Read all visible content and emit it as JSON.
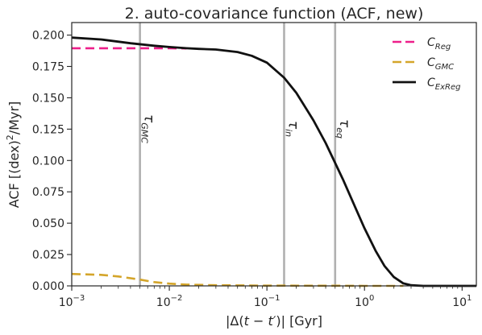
{
  "chart_data": {
    "type": "line",
    "title": "2. auto-covariance function (ACF, new)",
    "xlabel_parts": [
      "|Δ(",
      "t",
      " − ",
      "t′",
      ")| [Gyr]"
    ],
    "ylabel_parts": [
      "ACF [(dex)",
      "2",
      "/Myr]"
    ],
    "xscale": "log",
    "xlim": [
      0.001,
      14
    ],
    "ylim": [
      0,
      0.21
    ],
    "x_ticks": [
      {
        "value": 0.001,
        "base": "10",
        "exp": "−3"
      },
      {
        "value": 0.01,
        "base": "10",
        "exp": "−2"
      },
      {
        "value": 0.1,
        "base": "10",
        "exp": "−1"
      },
      {
        "value": 1,
        "base": "10",
        "exp": "0"
      },
      {
        "value": 10,
        "base": "10",
        "exp": "1"
      }
    ],
    "y_ticks": [
      "0.000",
      "0.025",
      "0.050",
      "0.075",
      "0.100",
      "0.125",
      "0.150",
      "0.175",
      "0.200"
    ],
    "grid": false,
    "legend_position": "top-right",
    "vlines": [
      {
        "x": 0.005,
        "sym": "τ",
        "sub": "GMC",
        "color": "#b0b0b0"
      },
      {
        "x": 0.15,
        "sym": "τ",
        "sub": "in",
        "color": "#b0b0b0"
      },
      {
        "x": 0.5,
        "sym": "τ",
        "sub": "eq",
        "color": "#b0b0b0"
      }
    ],
    "series": [
      {
        "sym": "C",
        "sub": "Reg",
        "color": "#ee1f8a",
        "dash": "11,6",
        "width": 2.6,
        "x": [
          0.001,
          0.002,
          0.004,
          0.007,
          0.01,
          0.015
        ],
        "y": [
          0.1895,
          0.1895,
          0.1895,
          0.1895,
          0.1895,
          0.1893
        ]
      },
      {
        "sym": "C",
        "sub": "GMC",
        "color": "#d4a52a",
        "dash": "11,6",
        "width": 2.6,
        "x": [
          0.001,
          0.002,
          0.003,
          0.005,
          0.007,
          0.01,
          0.015,
          0.03,
          0.1,
          0.5,
          1,
          2.5
        ],
        "y": [
          0.0095,
          0.0088,
          0.0075,
          0.005,
          0.003,
          0.0018,
          0.001,
          0.0005,
          0.0002,
          0.0001,
          0.0,
          0.0
        ]
      },
      {
        "sym": "C",
        "sub": "ExReg",
        "color": "#111111",
        "dash": "",
        "width": 2.8,
        "x": [
          0.001,
          0.002,
          0.004,
          0.007,
          0.01,
          0.015,
          0.02,
          0.03,
          0.05,
          0.07,
          0.1,
          0.15,
          0.2,
          0.3,
          0.4,
          0.5,
          0.6,
          0.8,
          1.0,
          1.3,
          1.6,
          2.0,
          2.5,
          3.0,
          4.0,
          5.0,
          10.0,
          14.0
        ],
        "y": [
          0.198,
          0.1965,
          0.1935,
          0.1915,
          0.1905,
          0.1895,
          0.189,
          0.1885,
          0.1865,
          0.1835,
          0.178,
          0.166,
          0.154,
          0.132,
          0.114,
          0.098,
          0.085,
          0.063,
          0.046,
          0.028,
          0.016,
          0.007,
          0.002,
          0.0005,
          0.0,
          0.0,
          0.0,
          0.0
        ]
      }
    ]
  }
}
